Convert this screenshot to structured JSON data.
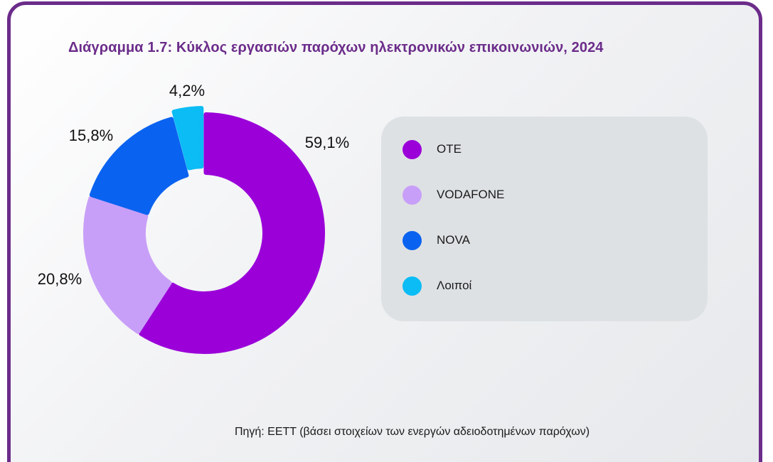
{
  "chart_data": {
    "type": "pie",
    "title": "Διάγραμμα 1.7: Κύκλος εργασιών παρόχων ηλεκτρονικών επικοινωνιών, 2024",
    "categories": [
      "OTE",
      "VODAFONE",
      "NOVA",
      "Λοιποί"
    ],
    "values": [
      59.1,
      20.8,
      15.8,
      4.2
    ],
    "value_labels": [
      "59,1%",
      "20,8%",
      "15,8%",
      "4,2%"
    ],
    "colors": [
      "#9b00d9",
      "#c89ff8",
      "#0a63f0",
      "#0bbcf5"
    ],
    "legend_position": "right",
    "source": "Πηγή: ΕΕΤΤ (βάσει στοιχείων των ενεργών αδειοδοτημένων παρόχων)"
  }
}
